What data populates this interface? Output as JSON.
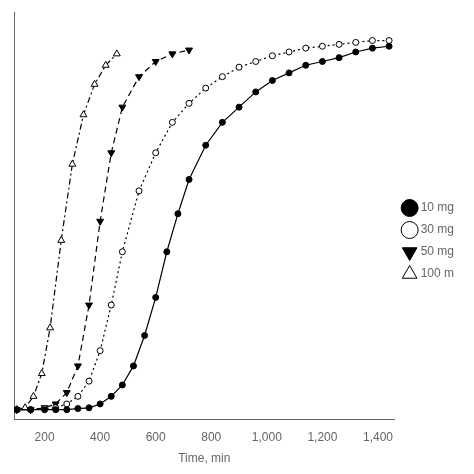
{
  "chart_data": {
    "type": "line",
    "xlabel": "Time, min",
    "xlim": [
      90,
      1460
    ],
    "ylim": [
      -0.02,
      1.05
    ],
    "xticks": [
      200,
      400,
      600,
      800,
      1000,
      1200,
      1400
    ],
    "yticks": [],
    "grid": false,
    "legend": "right",
    "tick_labels": "x",
    "series": [
      {
        "name": "10 mg",
        "color": "black",
        "marker": "filled_circle",
        "line_style": "solid",
        "x": [
          100,
          150,
          200,
          240,
          280,
          320,
          360,
          400,
          440,
          480,
          520,
          560,
          600,
          640,
          680,
          720,
          780,
          840,
          900,
          960,
          1020,
          1080,
          1140,
          1200,
          1260,
          1320,
          1380,
          1440
        ],
        "values": [
          0.005,
          0.005,
          0.005,
          0.005,
          0.005,
          0.008,
          0.01,
          0.02,
          0.04,
          0.07,
          0.12,
          0.2,
          0.3,
          0.42,
          0.52,
          0.61,
          0.7,
          0.76,
          0.8,
          0.84,
          0.87,
          0.89,
          0.91,
          0.92,
          0.93,
          0.945,
          0.955,
          0.96
        ]
      },
      {
        "name": "30 mg",
        "color": "black",
        "marker": "open_circle",
        "line_style": "dotted",
        "x": [
          100,
          150,
          200,
          240,
          280,
          320,
          360,
          400,
          440,
          480,
          540,
          600,
          660,
          720,
          780,
          840,
          900,
          960,
          1020,
          1080,
          1140,
          1200,
          1260,
          1320,
          1380,
          1440
        ],
        "values": [
          0.005,
          0.005,
          0.008,
          0.01,
          0.02,
          0.04,
          0.08,
          0.16,
          0.28,
          0.42,
          0.58,
          0.68,
          0.76,
          0.81,
          0.85,
          0.88,
          0.905,
          0.92,
          0.935,
          0.945,
          0.955,
          0.96,
          0.965,
          0.97,
          0.975,
          0.975
        ]
      },
      {
        "name": "50 mg",
        "color": "black",
        "marker": "filled_triangle_down",
        "line_style": "dashed",
        "x": [
          100,
          150,
          200,
          240,
          280,
          320,
          360,
          400,
          440,
          480,
          540,
          600,
          660,
          720
        ],
        "values": [
          0.005,
          0.005,
          0.01,
          0.02,
          0.05,
          0.12,
          0.28,
          0.5,
          0.68,
          0.8,
          0.88,
          0.92,
          0.94,
          0.95
        ]
      },
      {
        "name": "100 m",
        "color": "black",
        "marker": "open_triangle_up",
        "line_style": "dashdot",
        "x": [
          100,
          130,
          160,
          190,
          220,
          260,
          300,
          340,
          380,
          420,
          460
        ],
        "values": [
          0.005,
          0.01,
          0.04,
          0.1,
          0.22,
          0.45,
          0.65,
          0.78,
          0.86,
          0.91,
          0.94
        ]
      }
    ]
  }
}
